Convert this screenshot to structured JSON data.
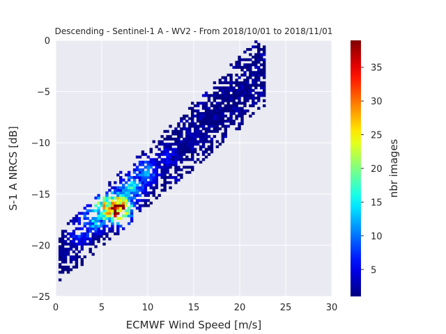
{
  "chart_data": {
    "type": "heatmap",
    "title": "Descending - Sentinel-1 A - WV2 - From 2018/10/01 to 2018/11/01",
    "xlabel": "ECMWF Wind Speed [m/s]",
    "ylabel": "S-1 A NRCS [dB]",
    "xlim": [
      0,
      30
    ],
    "ylim": [
      -25,
      0
    ],
    "xticks": [
      "0",
      "5",
      "10",
      "15",
      "20",
      "25",
      "30"
    ],
    "yticks": [
      "0",
      "−5",
      "−10",
      "−15",
      "−20",
      "−25"
    ],
    "grid": true,
    "colormap": "jet",
    "colorbar": {
      "label": "nbr images",
      "range": [
        1,
        39
      ],
      "ticks": [
        "5",
        "10",
        "15",
        "20",
        "25",
        "30",
        "35"
      ]
    },
    "density": {
      "description_points": [
        {
          "x": 1.5,
          "y": -21.0,
          "count": 3
        },
        {
          "x": 2.5,
          "y": -19.0,
          "count": 8
        },
        {
          "x": 4.0,
          "y": -17.5,
          "count": 15
        },
        {
          "x": 5.5,
          "y": -16.5,
          "count": 30
        },
        {
          "x": 6.5,
          "y": -16.5,
          "count": 39
        },
        {
          "x": 8.0,
          "y": -14.5,
          "count": 15
        },
        {
          "x": 9.5,
          "y": -13.0,
          "count": 12
        },
        {
          "x": 12.0,
          "y": -11.5,
          "count": 6
        },
        {
          "x": 15.0,
          "y": -9.5,
          "count": 3
        },
        {
          "x": 18.0,
          "y": -8.0,
          "count": 1
        }
      ]
    }
  },
  "colors": {
    "plot_background": "#eaeaf2",
    "grid": "#ffffff",
    "text": "#262626"
  }
}
